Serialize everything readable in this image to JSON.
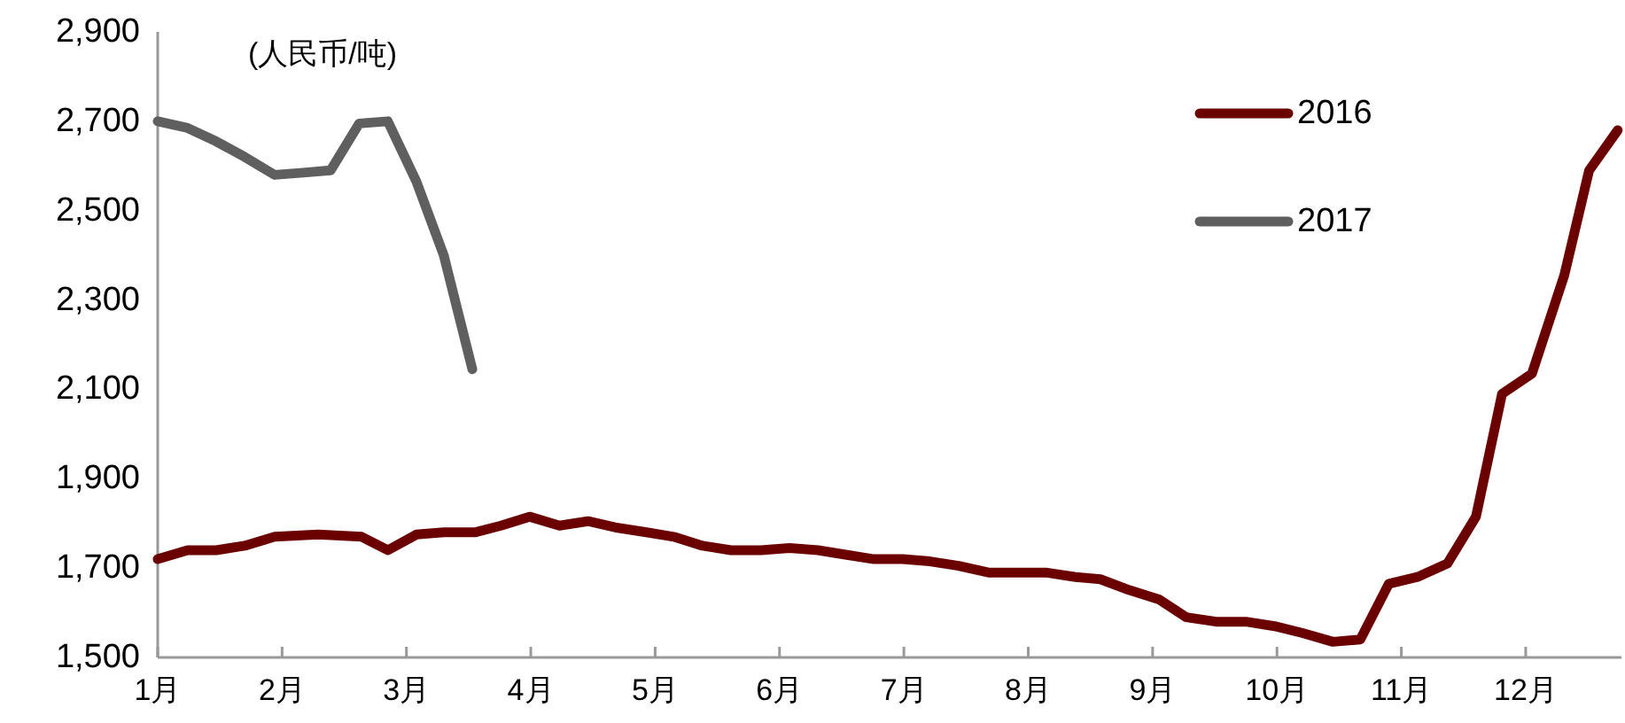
{
  "chart_data": {
    "type": "line",
    "annotations": [
      "(人民币/吨)"
    ],
    "xlim": [
      1,
      12.77
    ],
    "xticks": [
      {
        "value": 1,
        "label": "1月"
      },
      {
        "value": 2,
        "label": "2月"
      },
      {
        "value": 3,
        "label": "3月"
      },
      {
        "value": 4,
        "label": "4月"
      },
      {
        "value": 5,
        "label": "5月"
      },
      {
        "value": 6,
        "label": "6月"
      },
      {
        "value": 7,
        "label": "7月"
      },
      {
        "value": 8,
        "label": "8月"
      },
      {
        "value": 9,
        "label": "9月"
      },
      {
        "value": 10,
        "label": "10月"
      },
      {
        "value": 11,
        "label": "11月"
      },
      {
        "value": 12,
        "label": "12月"
      }
    ],
    "ylim": [
      1500,
      2900
    ],
    "yticks": [
      {
        "value": 1500,
        "label": "1,500"
      },
      {
        "value": 1700,
        "label": "1,700"
      },
      {
        "value": 1900,
        "label": "1,900"
      },
      {
        "value": 2100,
        "label": "2,100"
      },
      {
        "value": 2300,
        "label": "2,300"
      },
      {
        "value": 2500,
        "label": "2,500"
      },
      {
        "value": 2700,
        "label": "2,700"
      },
      {
        "value": 2900,
        "label": "2,900"
      }
    ],
    "legend": "top right",
    "marker": "none",
    "line_style": "solid",
    "series": [
      {
        "name": "2016",
        "color": "#6b0000",
        "x": [
          1.0,
          1.24,
          1.47,
          1.7,
          1.94,
          2.29,
          2.64,
          2.85,
          3.08,
          3.3,
          3.55,
          3.76,
          3.99,
          4.23,
          4.46,
          4.7,
          4.93,
          5.15,
          5.38,
          5.61,
          5.85,
          6.08,
          6.31,
          6.53,
          6.76,
          6.99,
          7.21,
          7.44,
          7.68,
          7.91,
          8.14,
          8.38,
          8.58,
          8.82,
          9.05,
          9.27,
          9.51,
          9.75,
          9.98,
          10.2,
          10.45,
          10.67,
          10.9,
          11.13,
          11.37,
          11.6,
          11.81,
          12.05,
          12.31,
          12.51,
          12.74
        ],
        "values": [
          1720,
          1740,
          1740,
          1750,
          1770,
          1775,
          1770,
          1740,
          1775,
          1780,
          1780,
          1795,
          1815,
          1795,
          1805,
          1790,
          1780,
          1770,
          1750,
          1740,
          1740,
          1745,
          1740,
          1730,
          1720,
          1720,
          1715,
          1705,
          1690,
          1690,
          1690,
          1680,
          1675,
          1650,
          1630,
          1590,
          1580,
          1580,
          1570,
          1555,
          1535,
          1540,
          1665,
          1680,
          1710,
          1815,
          2090,
          2135,
          2355,
          2590,
          2680
        ]
      },
      {
        "name": "2017",
        "color": "#5f5f5f",
        "x": [
          1.0,
          1.24,
          1.47,
          1.7,
          1.94,
          2.17,
          2.39,
          2.62,
          2.85,
          3.08,
          3.3,
          3.53
        ],
        "values": [
          2700,
          2685,
          2655,
          2620,
          2580,
          2585,
          2590,
          2695,
          2700,
          2565,
          2400,
          2145
        ]
      }
    ]
  }
}
